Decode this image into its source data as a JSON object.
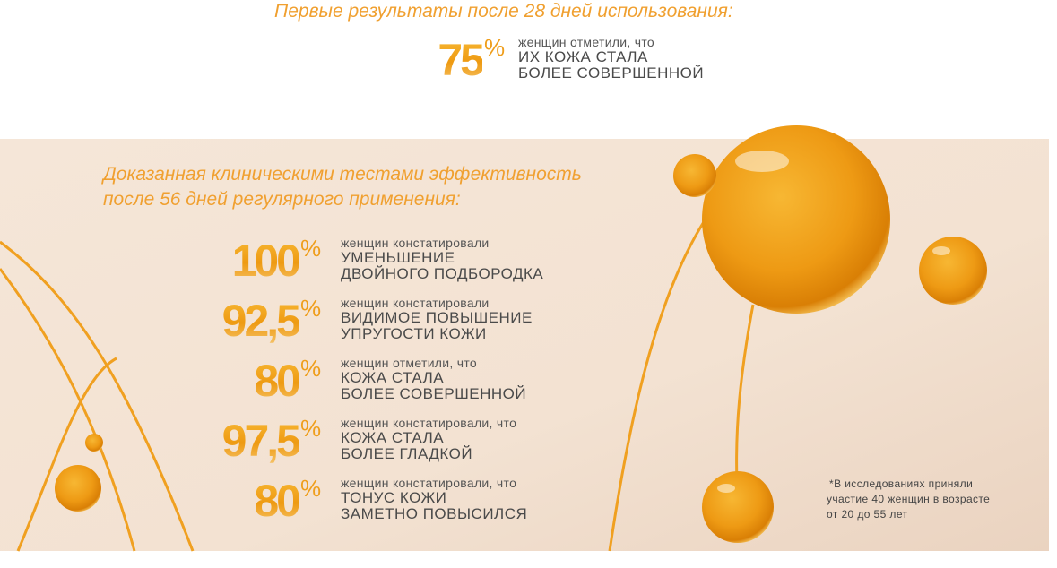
{
  "header": {
    "title": "Первые результаты после 28 дней использования:",
    "stat": {
      "value": "75",
      "unit": "%",
      "lead": "женщин отметили, что",
      "lines": [
        "ИХ КОЖА СТАЛА",
        "БОЛЕЕ СОВЕРШЕННОЙ"
      ]
    }
  },
  "section": {
    "title_lines": [
      "Доказанная клиническими тестами эффективность",
      "после 56 дней регулярного применения:"
    ],
    "stats": [
      {
        "value": "100",
        "unit": "%",
        "lead": "женщин констатировали",
        "lines": [
          "УМЕНЬШЕНИЕ",
          "ДВОЙНОГО ПОДБОРОДКА"
        ]
      },
      {
        "value": "92,5",
        "unit": "%",
        "lead": "женщин констатировали",
        "lines": [
          "ВИДИМОЕ ПОВЫШЕНИЕ",
          "УПРУГОСТИ КОЖИ"
        ]
      },
      {
        "value": "80",
        "unit": "%",
        "lead": "женщин отметили, что",
        "lines": [
          "КОЖА СТАЛА",
          "БОЛЕЕ СОВЕРШЕННОЙ"
        ]
      },
      {
        "value": "97,5",
        "unit": "%",
        "lead": "женщин констатировали, что",
        "lines": [
          "КОЖА СТАЛА",
          "БОЛЕЕ ГЛАДКОЙ"
        ]
      },
      {
        "value": "80",
        "unit": "%",
        "lead": "женщин констатировали, что",
        "lines": [
          "ТОНУС КОЖИ",
          "ЗАМЕТНО ПОВЫСИЛСЯ"
        ]
      }
    ],
    "footnote": [
      "*В исследованиях приняли",
      "участие 40 женщин в возрасте",
      "от 20 до 55 лет"
    ]
  }
}
